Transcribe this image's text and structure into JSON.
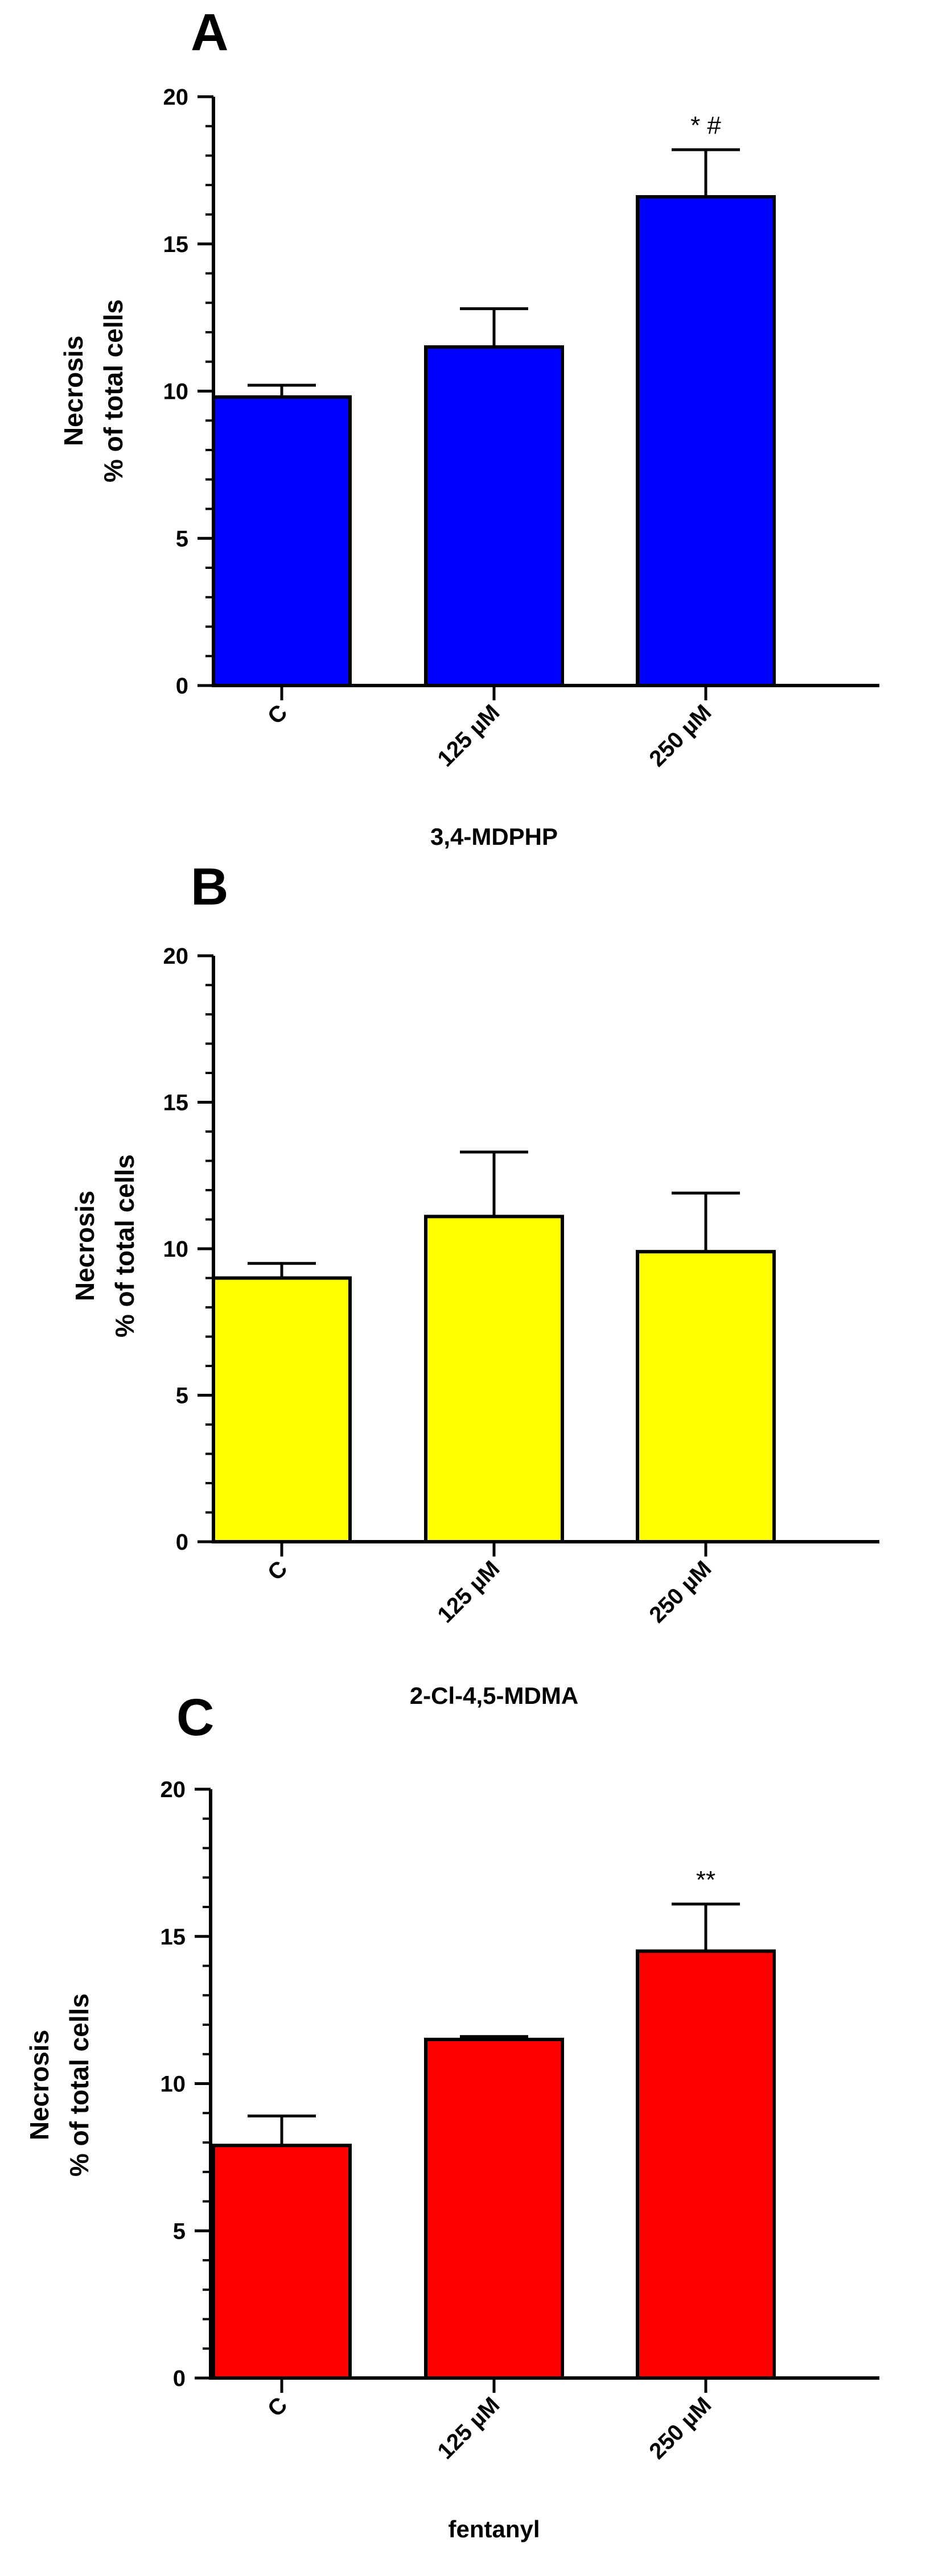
{
  "chart_data": [
    {
      "panel": "A",
      "type": "bar",
      "categories": [
        "C",
        "125 µM",
        "250 µM"
      ],
      "values": [
        9.8,
        11.5,
        16.6
      ],
      "errors": [
        0.4,
        1.3,
        1.6
      ],
      "annotations": [
        "",
        "",
        "* #"
      ],
      "ylabel_line1": "Necrosis",
      "ylabel_line2": "% of total cells",
      "xlabel": "3,4-MDPHP",
      "ylim": [
        0,
        20
      ],
      "yticks": [
        0,
        5,
        10,
        15,
        20
      ],
      "bar_color": "#0000FF"
    },
    {
      "panel": "B",
      "type": "bar",
      "categories": [
        "C",
        "125 µM",
        "250 µM"
      ],
      "values": [
        9.0,
        11.1,
        9.9
      ],
      "errors": [
        0.5,
        2.2,
        2.0
      ],
      "annotations": [
        "",
        "",
        ""
      ],
      "ylabel_line1": "Necrosis",
      "ylabel_line2": "% of total cells",
      "xlabel": "2-Cl-4,5-MDMA",
      "ylim": [
        0,
        20
      ],
      "yticks": [
        0,
        5,
        10,
        15,
        20
      ],
      "bar_color": "#FFFF00"
    },
    {
      "panel": "C",
      "type": "bar",
      "categories": [
        "C",
        "125 µM",
        "250 µM"
      ],
      "values": [
        7.9,
        11.5,
        14.5
      ],
      "errors": [
        1.0,
        0.1,
        1.6
      ],
      "annotations": [
        "",
        "",
        "**"
      ],
      "ylabel_line1": "Necrosis",
      "ylabel_line2": "% of total cells",
      "xlabel": "fentanyl",
      "ylim": [
        0,
        20
      ],
      "yticks": [
        0,
        5,
        10,
        15,
        20
      ],
      "bar_color": "#FF0000"
    }
  ]
}
